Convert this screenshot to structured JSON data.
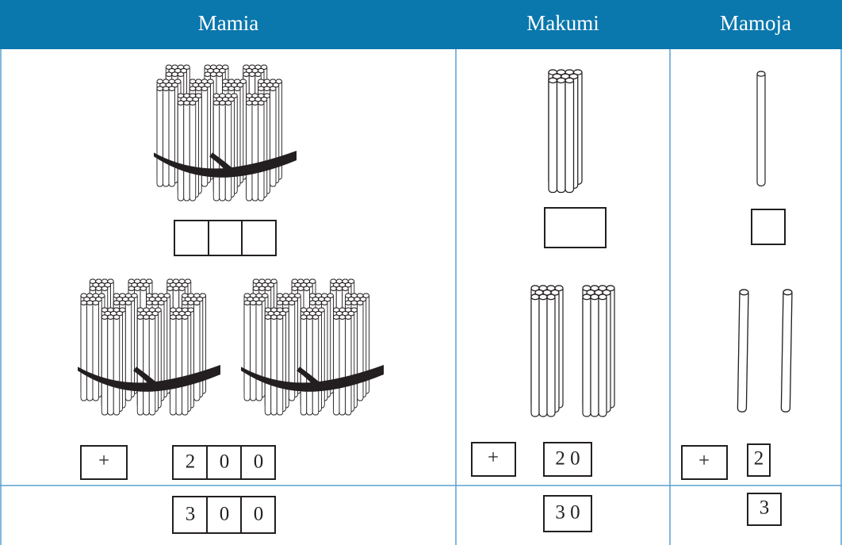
{
  "table": {
    "header": [
      "Mamia",
      "Makumi",
      "Mamoja"
    ],
    "addition_row": {
      "mamia": {
        "operator": "+",
        "digits": [
          "2",
          "0",
          "0"
        ]
      },
      "makumi": {
        "operator": "+",
        "digits": "2 0"
      },
      "mamoja": {
        "operator": "+",
        "digits": "2"
      }
    },
    "total_row": {
      "mamia": [
        "3",
        "0",
        "0"
      ],
      "makumi": "3 0",
      "mamoja": "3"
    }
  }
}
